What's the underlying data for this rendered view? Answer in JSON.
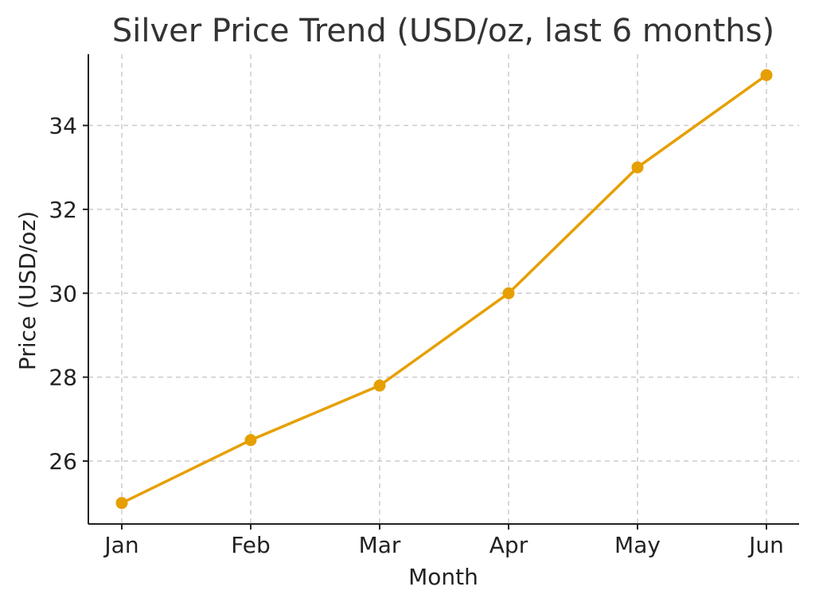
{
  "chart_data": {
    "type": "line",
    "title": "Silver Price Trend (USD/oz, last 6 months)",
    "xlabel": "Month",
    "ylabel": "Price (USD/oz)",
    "categories": [
      "Jan",
      "Feb",
      "Mar",
      "Apr",
      "May",
      "Jun"
    ],
    "series": [
      {
        "values": [
          25.0,
          26.5,
          27.8,
          30.0,
          33.0,
          35.2
        ],
        "color": "#E69F00"
      }
    ],
    "ylim": [
      24.5,
      35.7
    ],
    "yticks": [
      26,
      28,
      30,
      32,
      34
    ],
    "grid": true,
    "markers": true
  }
}
